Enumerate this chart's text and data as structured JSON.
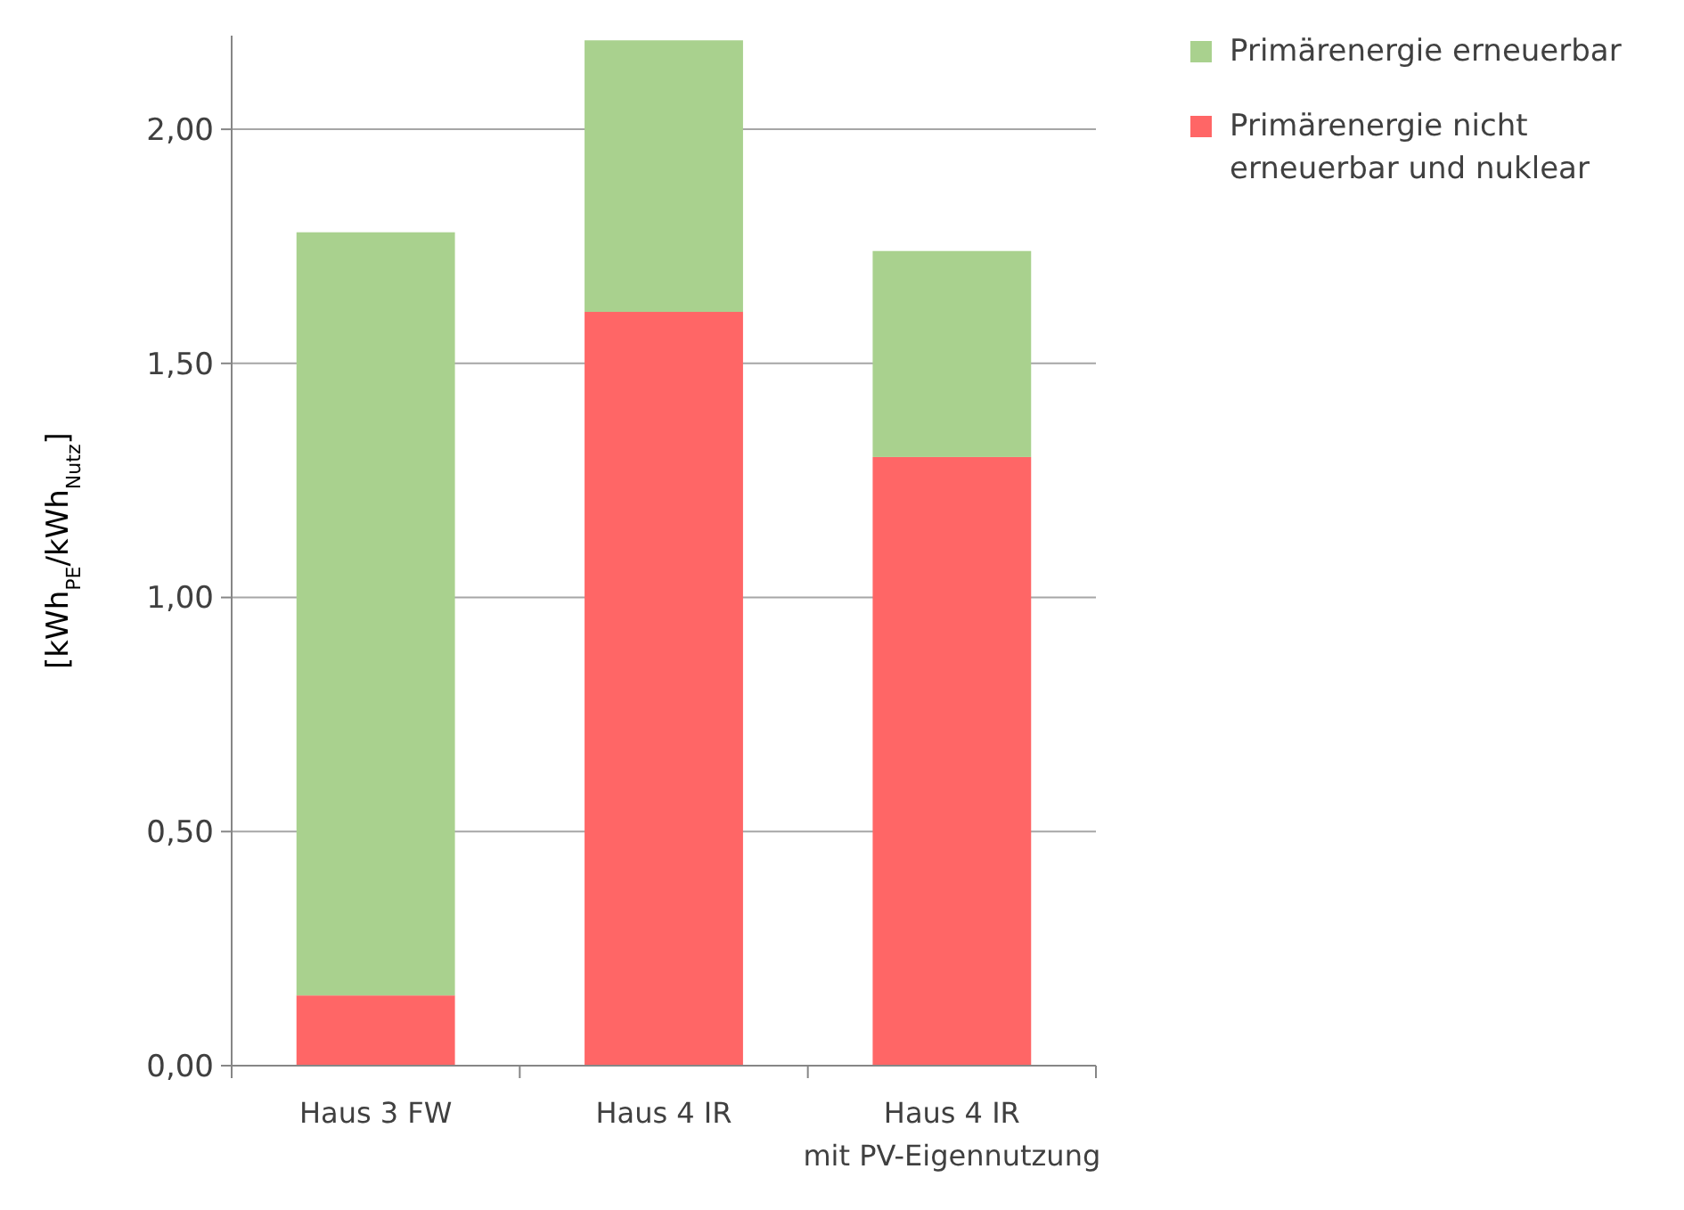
{
  "chart_data": {
    "type": "bar",
    "stacked": true,
    "ylabel": "[kWh$_{PE}$/kWh$_{Nutz}$]",
    "categories": [
      "Haus 3 FW",
      "Haus 4 IR",
      "Haus 4 IR\nmit PV-Eigennutzung"
    ],
    "series": [
      {
        "name": "Primärenergie nicht erneuerbar und nuklear",
        "color": "#ff6666",
        "values": [
          0.15,
          1.61,
          1.3
        ]
      },
      {
        "name": "Primärenergie erneuerbar",
        "color": "#a9d18e",
        "values": [
          1.63,
          0.58,
          0.44
        ]
      }
    ],
    "ylim": [
      0,
      2.2
    ],
    "yticks": [
      {
        "value": 0,
        "label": "0,00"
      },
      {
        "value": 0.5,
        "label": "0,50"
      },
      {
        "value": 1,
        "label": "1,00"
      },
      {
        "value": 1.5,
        "label": "1,50"
      },
      {
        "value": 2,
        "label": "2,00"
      }
    ],
    "grid": "y",
    "legend": "top right"
  }
}
